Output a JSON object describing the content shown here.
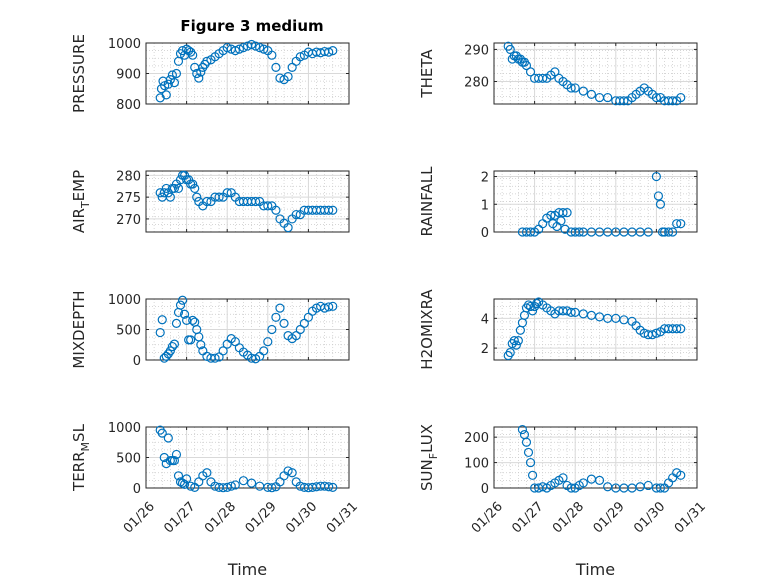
{
  "figure": {
    "title": "Figure 3 medium",
    "xticks": [
      "01/26",
      "01/27",
      "01/28",
      "01/29",
      "01/30",
      "01/31"
    ],
    "xlabel": "Time",
    "marker_color": "#0072bd",
    "marker": "circle"
  },
  "chart_data": [
    {
      "type": "scatter",
      "title": "Figure 3 medium",
      "ylabel": "PRESSURE",
      "ylim": [
        800,
        1000
      ],
      "yticks": [
        800,
        900,
        1000
      ],
      "grid": true,
      "xlabel": "",
      "x_range": [
        "01/26",
        "01/31"
      ],
      "x": [
        0.35,
        0.38,
        0.42,
        0.46,
        0.5,
        0.55,
        0.6,
        0.65,
        0.7,
        0.75,
        0.8,
        0.85,
        0.9,
        0.95,
        1.0,
        1.05,
        1.1,
        1.15,
        1.2,
        1.25,
        1.3,
        1.35,
        1.4,
        1.45,
        1.5,
        1.6,
        1.7,
        1.8,
        1.9,
        2.0,
        2.1,
        2.2,
        2.3,
        2.4,
        2.5,
        2.6,
        2.7,
        2.8,
        2.9,
        3.0,
        3.1,
        3.2,
        3.3,
        3.4,
        3.5,
        3.6,
        3.7,
        3.8,
        3.9,
        4.0,
        4.1,
        4.2,
        4.3,
        4.4,
        4.5,
        4.6
      ],
      "y": [
        820,
        850,
        875,
        860,
        830,
        865,
        880,
        895,
        870,
        900,
        940,
        965,
        975,
        960,
        980,
        975,
        970,
        960,
        920,
        900,
        885,
        905,
        920,
        930,
        940,
        945,
        955,
        965,
        975,
        985,
        980,
        975,
        980,
        985,
        990,
        995,
        990,
        985,
        980,
        975,
        960,
        920,
        885,
        880,
        890,
        920,
        940,
        955,
        960,
        970,
        965,
        970,
        968,
        972,
        970,
        975
      ]
    },
    {
      "type": "scatter",
      "ylabel": "THETA",
      "ylim": [
        273,
        292
      ],
      "yticks": [
        280,
        290
      ],
      "grid": true,
      "xlabel": "",
      "x_range": [
        "01/26",
        "01/31"
      ],
      "x": [
        0.35,
        0.4,
        0.45,
        0.5,
        0.55,
        0.6,
        0.65,
        0.7,
        0.75,
        0.8,
        0.9,
        1.0,
        1.1,
        1.2,
        1.3,
        1.4,
        1.5,
        1.6,
        1.7,
        1.8,
        1.9,
        2.0,
        2.2,
        2.4,
        2.6,
        2.8,
        3.0,
        3.1,
        3.2,
        3.3,
        3.4,
        3.5,
        3.6,
        3.7,
        3.8,
        3.9,
        4.0,
        4.1,
        4.2,
        4.3,
        4.4,
        4.5,
        4.6
      ],
      "y": [
        291,
        290,
        287,
        288,
        288,
        287,
        287,
        286,
        286,
        285,
        283,
        281,
        281,
        281,
        281,
        282,
        283,
        281,
        280,
        279,
        278,
        278,
        277,
        276,
        275,
        275,
        274,
        274,
        274,
        274,
        275,
        276,
        277,
        278,
        277,
        276,
        275,
        275,
        274,
        274,
        274,
        274,
        275
      ]
    },
    {
      "type": "scatter",
      "ylabel": "AIR_TEMP",
      "ylim": [
        267,
        281
      ],
      "yticks": [
        270,
        275,
        280
      ],
      "grid": true,
      "xlabel": "",
      "x_range": [
        "01/26",
        "01/31"
      ],
      "x": [
        0.35,
        0.4,
        0.45,
        0.5,
        0.55,
        0.6,
        0.65,
        0.7,
        0.75,
        0.8,
        0.85,
        0.9,
        0.95,
        1.0,
        1.05,
        1.1,
        1.15,
        1.2,
        1.25,
        1.3,
        1.4,
        1.5,
        1.6,
        1.7,
        1.8,
        1.9,
        2.0,
        2.1,
        2.2,
        2.3,
        2.4,
        2.5,
        2.6,
        2.7,
        2.8,
        2.9,
        3.0,
        3.1,
        3.2,
        3.3,
        3.4,
        3.5,
        3.6,
        3.7,
        3.8,
        3.9,
        4.0,
        4.1,
        4.2,
        4.3,
        4.4,
        4.5,
        4.6
      ],
      "y": [
        276,
        275,
        276,
        277,
        276,
        275,
        277,
        277,
        278,
        277,
        279,
        280,
        280,
        279,
        279,
        278,
        278,
        277,
        275,
        274,
        273,
        274,
        274,
        275,
        275,
        275,
        276,
        276,
        275,
        274,
        274,
        274,
        274,
        274,
        274,
        273,
        273,
        273,
        272,
        270,
        269,
        268,
        270,
        271,
        271,
        272,
        272,
        272,
        272,
        272,
        272,
        272,
        272
      ]
    },
    {
      "type": "scatter",
      "ylabel": "RAINFALL",
      "ylim": [
        0,
        2.2
      ],
      "yticks": [
        0,
        1,
        2
      ],
      "grid": true,
      "xlabel": "",
      "x_range": [
        "01/26",
        "01/31"
      ],
      "x": [
        0.7,
        0.8,
        0.9,
        1.0,
        1.1,
        1.2,
        1.3,
        1.4,
        1.45,
        1.5,
        1.55,
        1.6,
        1.65,
        1.7,
        1.75,
        1.8,
        1.9,
        2.0,
        2.1,
        2.2,
        2.4,
        2.6,
        2.8,
        3.0,
        3.2,
        3.4,
        3.6,
        3.8,
        4.0,
        4.05,
        4.1,
        4.15,
        4.2,
        4.3,
        4.4,
        4.5,
        4.6
      ],
      "y": [
        0,
        0,
        0,
        0,
        0.1,
        0.3,
        0.5,
        0.6,
        0.3,
        0.6,
        0.2,
        0.7,
        0.4,
        0.7,
        0.1,
        0.7,
        0,
        0,
        0,
        0,
        0,
        0,
        0,
        0,
        0,
        0,
        0,
        0,
        2.0,
        1.3,
        1.0,
        0,
        0,
        0,
        0,
        0.3,
        0.3
      ]
    },
    {
      "type": "scatter",
      "ylabel": "MIXDEPTH",
      "ylim": [
        0,
        1000
      ],
      "yticks": [
        0,
        500,
        1000
      ],
      "grid": true,
      "xlabel": "",
      "x_range": [
        "01/26",
        "01/31"
      ],
      "x": [
        0.35,
        0.4,
        0.45,
        0.5,
        0.55,
        0.6,
        0.65,
        0.7,
        0.75,
        0.8,
        0.85,
        0.9,
        0.95,
        1.0,
        1.05,
        1.1,
        1.15,
        1.2,
        1.25,
        1.3,
        1.35,
        1.4,
        1.5,
        1.6,
        1.7,
        1.8,
        1.9,
        2.0,
        2.1,
        2.2,
        2.3,
        2.4,
        2.5,
        2.6,
        2.7,
        2.8,
        2.9,
        3.0,
        3.1,
        3.2,
        3.3,
        3.4,
        3.5,
        3.6,
        3.7,
        3.8,
        3.9,
        4.0,
        4.1,
        4.2,
        4.3,
        4.4,
        4.5,
        4.6
      ],
      "y": [
        450,
        660,
        30,
        60,
        100,
        150,
        220,
        260,
        600,
        780,
        900,
        980,
        750,
        650,
        330,
        330,
        650,
        620,
        500,
        380,
        250,
        150,
        60,
        30,
        30,
        50,
        150,
        260,
        350,
        300,
        200,
        130,
        80,
        30,
        20,
        60,
        150,
        300,
        500,
        700,
        850,
        600,
        400,
        350,
        400,
        500,
        600,
        700,
        800,
        850,
        880,
        850,
        870,
        880
      ]
    },
    {
      "type": "scatter",
      "ylabel": "H2OMIXRA",
      "ylim": [
        1.2,
        5.3
      ],
      "yticks": [
        2,
        4
      ],
      "grid": true,
      "xlabel": "",
      "x_range": [
        "01/26",
        "01/31"
      ],
      "x": [
        0.35,
        0.4,
        0.45,
        0.5,
        0.55,
        0.6,
        0.65,
        0.7,
        0.75,
        0.8,
        0.85,
        0.9,
        0.95,
        1.0,
        1.05,
        1.1,
        1.2,
        1.3,
        1.4,
        1.5,
        1.6,
        1.7,
        1.8,
        1.9,
        2.0,
        2.2,
        2.4,
        2.6,
        2.8,
        3.0,
        3.2,
        3.4,
        3.5,
        3.6,
        3.7,
        3.8,
        3.9,
        4.0,
        4.1,
        4.2,
        4.3,
        4.4,
        4.5,
        4.6
      ],
      "y": [
        1.5,
        1.7,
        2.3,
        2.5,
        2.2,
        2.5,
        3.2,
        3.7,
        4.2,
        4.7,
        4.9,
        4.8,
        4.5,
        4.8,
        5.0,
        5.1,
        4.9,
        4.7,
        4.5,
        4.3,
        4.5,
        4.5,
        4.5,
        4.4,
        4.4,
        4.3,
        4.2,
        4.1,
        4.0,
        4.0,
        3.9,
        3.8,
        3.5,
        3.2,
        3.0,
        2.9,
        2.9,
        3.0,
        3.1,
        3.3,
        3.3,
        3.3,
        3.3,
        3.3
      ]
    },
    {
      "type": "scatter",
      "ylabel": "TERR_MSL",
      "ylim": [
        0,
        1000
      ],
      "yticks": [
        0,
        500,
        1000
      ],
      "grid": true,
      "xlabel": "Time",
      "xticks": [
        "01/26",
        "01/27",
        "01/28",
        "01/29",
        "01/30",
        "01/31"
      ],
      "x_range": [
        "01/26",
        "01/31"
      ],
      "x": [
        0.35,
        0.4,
        0.45,
        0.5,
        0.55,
        0.6,
        0.65,
        0.7,
        0.75,
        0.8,
        0.85,
        0.9,
        0.95,
        1.0,
        1.1,
        1.2,
        1.3,
        1.4,
        1.5,
        1.6,
        1.7,
        1.8,
        1.9,
        2.0,
        2.1,
        2.2,
        2.4,
        2.6,
        2.8,
        3.0,
        3.1,
        3.2,
        3.3,
        3.4,
        3.5,
        3.6,
        3.7,
        3.8,
        3.9,
        4.0,
        4.1,
        4.2,
        4.3,
        4.4,
        4.5,
        4.6
      ],
      "y": [
        950,
        900,
        500,
        400,
        820,
        450,
        450,
        450,
        550,
        200,
        100,
        80,
        60,
        150,
        30,
        10,
        100,
        200,
        250,
        100,
        30,
        10,
        5,
        10,
        30,
        50,
        120,
        80,
        30,
        10,
        5,
        20,
        100,
        200,
        280,
        250,
        100,
        30,
        10,
        5,
        10,
        20,
        30,
        30,
        20,
        10
      ]
    },
    {
      "type": "scatter",
      "ylabel": "SUN_FLUX",
      "ylim": [
        0,
        240
      ],
      "yticks": [
        0,
        100,
        200
      ],
      "grid": true,
      "xlabel": "Time",
      "xticks": [
        "01/26",
        "01/27",
        "01/28",
        "01/29",
        "01/30",
        "01/31"
      ],
      "x_range": [
        "01/26",
        "01/31"
      ],
      "x": [
        0.7,
        0.75,
        0.8,
        0.85,
        0.9,
        0.95,
        1.0,
        1.1,
        1.2,
        1.3,
        1.4,
        1.5,
        1.6,
        1.7,
        1.8,
        1.9,
        2.0,
        2.1,
        2.2,
        2.4,
        2.6,
        2.8,
        3.0,
        3.2,
        3.4,
        3.6,
        3.8,
        4.0,
        4.1,
        4.2,
        4.3,
        4.4,
        4.5,
        4.6
      ],
      "y": [
        230,
        210,
        180,
        140,
        100,
        50,
        0,
        0,
        5,
        0,
        10,
        20,
        30,
        40,
        10,
        0,
        0,
        10,
        20,
        35,
        30,
        5,
        0,
        0,
        0,
        5,
        10,
        0,
        0,
        0,
        20,
        40,
        60,
        50
      ]
    }
  ]
}
